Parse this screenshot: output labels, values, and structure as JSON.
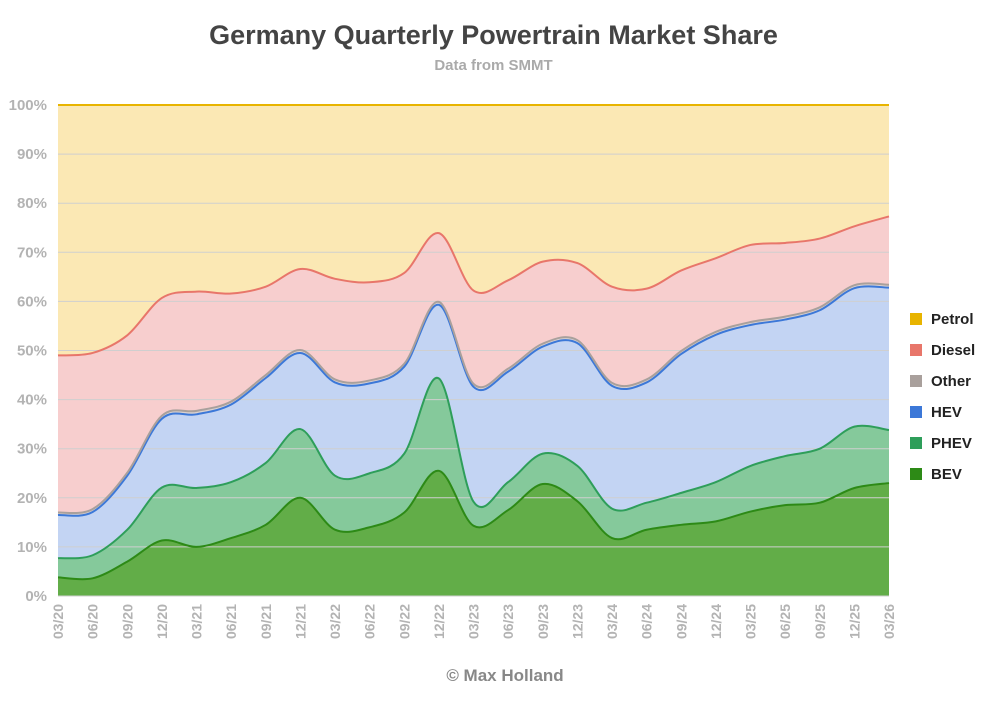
{
  "chart_data": {
    "type": "area",
    "stacked": true,
    "title": "Germany Quarterly Powertrain Market Share",
    "subtitle": "Data from SMMT",
    "credit": "© Max Holland",
    "ylim": [
      0,
      100
    ],
    "yticks": [
      "0%",
      "10%",
      "20%",
      "30%",
      "40%",
      "50%",
      "60%",
      "70%",
      "80%",
      "90%",
      "100%"
    ],
    "grid": true,
    "legend_position": "right",
    "categories": [
      "03/20",
      "06/20",
      "09/20",
      "12/20",
      "03/21",
      "06/21",
      "09/21",
      "12/21",
      "03/22",
      "06/22",
      "09/22",
      "12/22",
      "03/23",
      "06/23",
      "09/23",
      "12/23",
      "03/24",
      "06/24",
      "09/24",
      "12/24",
      "03/25",
      "06/25",
      "09/25",
      "12/25",
      "03/26"
    ],
    "series": [
      {
        "name": "BEV",
        "color": "#2d8a16",
        "fill": "#62ad48",
        "values": [
          3.8,
          3.6,
          7.0,
          11.3,
          10.0,
          11.8,
          14.5,
          20.0,
          13.5,
          14.0,
          17.0,
          25.5,
          14.3,
          17.5,
          22.8,
          19.3,
          11.8,
          13.5,
          14.5,
          15.2,
          17.2,
          18.5,
          19.0,
          22.0,
          23.0
        ]
      },
      {
        "name": "PHEV",
        "color": "#2e9e5a",
        "fill": "#85c99b",
        "values": [
          3.9,
          4.7,
          6.5,
          10.8,
          12.0,
          11.4,
          12.6,
          14.0,
          11.0,
          11.0,
          12.0,
          18.8,
          4.9,
          5.7,
          6.2,
          7.2,
          6.0,
          5.5,
          6.5,
          8.0,
          9.3,
          10.0,
          11.0,
          12.5,
          10.8
        ]
      },
      {
        "name": "HEV",
        "color": "#3c78d8",
        "fill": "#c3d4f3",
        "values": [
          8.8,
          8.8,
          11.0,
          14.0,
          15.0,
          15.8,
          17.3,
          15.5,
          19.0,
          18.3,
          17.7,
          15.0,
          23.4,
          22.5,
          21.8,
          25.0,
          25.0,
          24.5,
          28.3,
          30.0,
          28.7,
          27.8,
          28.2,
          28.2,
          29.0
        ]
      },
      {
        "name": "Other",
        "color": "#a9a09c",
        "fill": "#dad2d0",
        "values": [
          0.5,
          0.6,
          0.6,
          0.6,
          0.7,
          0.6,
          0.6,
          0.6,
          0.6,
          0.6,
          0.6,
          0.6,
          0.6,
          0.6,
          0.6,
          0.6,
          0.6,
          0.6,
          0.6,
          0.6,
          0.6,
          0.6,
          0.6,
          0.6,
          0.6
        ]
      },
      {
        "name": "Diesel",
        "color": "#e8766a",
        "fill": "#f7cece",
        "values": [
          32.0,
          31.8,
          28.0,
          24.0,
          24.3,
          22.0,
          18.0,
          16.5,
          20.5,
          20.0,
          18.5,
          14.0,
          19.0,
          18.0,
          16.7,
          15.7,
          19.6,
          18.5,
          16.4,
          15.0,
          15.7,
          15.0,
          14.0,
          12.0,
          13.9
        ]
      },
      {
        "name": "Petrol",
        "color": "#e8b400",
        "fill": "#fbe8b4",
        "values": [
          51.0,
          50.5,
          46.9,
          39.3,
          38.0,
          38.4,
          37.0,
          33.4,
          35.4,
          36.1,
          34.2,
          26.1,
          37.8,
          35.7,
          31.9,
          32.2,
          37.0,
          37.4,
          33.7,
          31.2,
          28.5,
          28.1,
          27.2,
          24.7,
          22.7
        ]
      }
    ]
  }
}
